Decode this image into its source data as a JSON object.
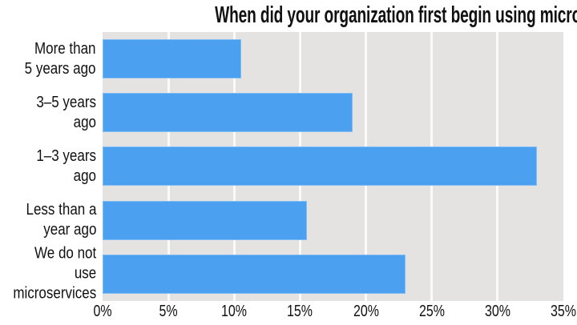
{
  "colors": {
    "bar": "#4BA0F0",
    "plot_background": "#E5E3E2",
    "gridline": "#FAFAFA",
    "text": "#111111",
    "page_background": "#FFFFFF"
  },
  "chart_data": {
    "type": "bar",
    "orientation": "horizontal",
    "title": "When did your organization first begin using microservices?",
    "categories": [
      "More than\n5 years ago",
      "3–5 years ago",
      "1–3 years ago",
      "Less than a\nyear ago",
      "We do not use\nmicroservices"
    ],
    "values": [
      10.5,
      19,
      33,
      15.5,
      23
    ],
    "unit": "%",
    "xlabel": "",
    "ylabel": "",
    "xlim": [
      0,
      35
    ],
    "x_ticks": [
      "0%",
      "5%",
      "10%",
      "15%",
      "20%",
      "25%",
      "30%",
      "35%"
    ],
    "grid": true,
    "legend": false
  }
}
